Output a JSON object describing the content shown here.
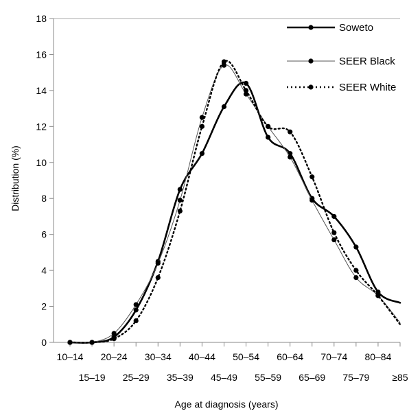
{
  "chart_data": {
    "type": "line",
    "title": "",
    "xlabel": "Age at diagnosis (years)",
    "ylabel": "Distribution (%)",
    "ylim": [
      0,
      18
    ],
    "yticks": [
      0,
      2,
      4,
      6,
      8,
      10,
      12,
      14,
      16,
      18
    ],
    "categories": [
      "10–14",
      "15–19",
      "20–24",
      "25–29",
      "30–34",
      "35–39",
      "40–44",
      "45–49",
      "50–54",
      "55–59",
      "60–64",
      "65–69",
      "70–74",
      "75–79",
      "80–84",
      "≥85"
    ],
    "grid": false,
    "legend_position": "top-right",
    "series": [
      {
        "name": "Soweto",
        "style": "thick-solid",
        "color": "#000000",
        "values": [
          0.0,
          0.0,
          0.3,
          1.8,
          4.5,
          8.5,
          10.5,
          13.1,
          14.4,
          11.4,
          10.5,
          8.0,
          7.0,
          5.3,
          2.8,
          2.2
        ]
      },
      {
        "name": "SEER Black",
        "style": "thin-solid",
        "color": "#555555",
        "values": [
          0.0,
          0.0,
          0.5,
          2.1,
          4.4,
          7.9,
          12.5,
          15.4,
          13.8,
          12.0,
          10.3,
          7.9,
          5.7,
          3.6,
          2.6,
          1.1
        ]
      },
      {
        "name": "SEER White",
        "style": "dotted",
        "color": "#000000",
        "values": [
          0.0,
          0.0,
          0.2,
          1.2,
          3.6,
          7.3,
          12.0,
          15.6,
          14.0,
          12.0,
          11.7,
          9.2,
          6.1,
          4.0,
          2.6,
          1.0
        ]
      }
    ]
  }
}
